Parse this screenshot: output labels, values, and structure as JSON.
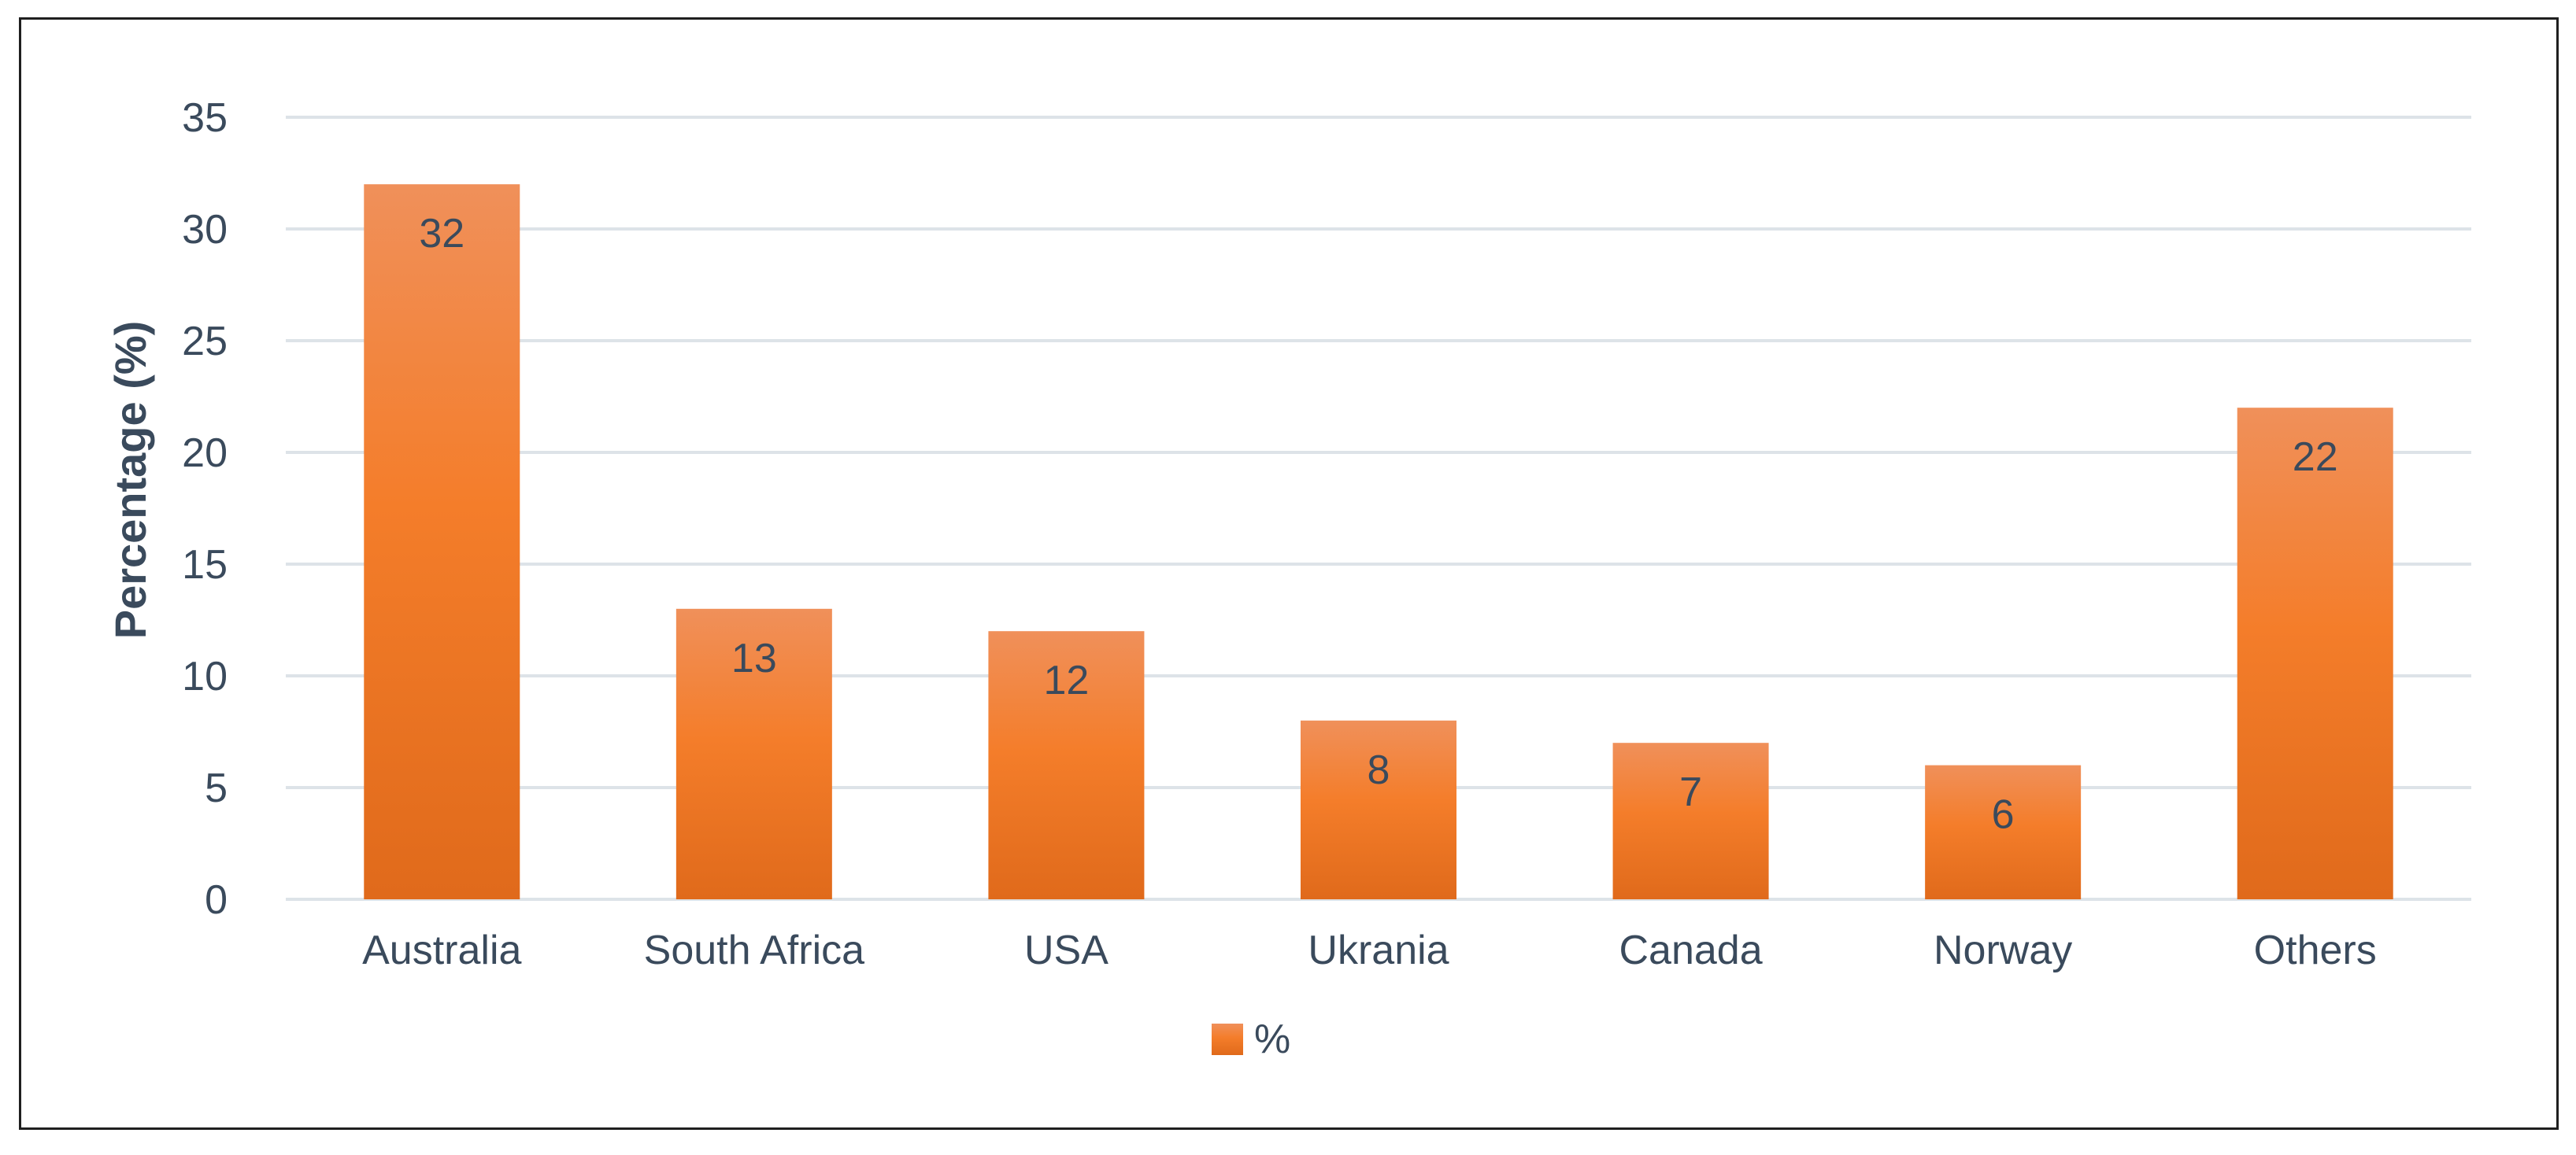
{
  "chart_data": {
    "type": "bar",
    "title": "",
    "xlabel": "",
    "ylabel": "Percentage (%)",
    "categories": [
      "Australia",
      "South Africa",
      "USA",
      "Ukrania",
      "Canada",
      "Norway",
      "Others"
    ],
    "series": [
      {
        "name": "%",
        "values": [
          32,
          13,
          12,
          8,
          7,
          6,
          22
        ]
      }
    ],
    "ylim": [
      0,
      35
    ],
    "yticks": [
      0,
      5,
      10,
      15,
      20,
      25,
      30,
      35
    ],
    "grid": true,
    "legend_position": "bottom",
    "data_labels": true,
    "colors": {
      "bar_top": "#f0905a",
      "bar_mid": "#f47d2a",
      "bar_bottom": "#e06a1b",
      "grid": "#dde3e8",
      "axis_text": "#3a4a5c",
      "data_label": "#3a4a5c"
    }
  }
}
